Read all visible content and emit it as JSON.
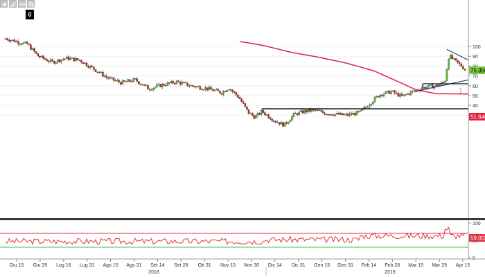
{
  "toolbar": {
    "buttons": [
      {
        "name": "add-icon"
      },
      {
        "name": "draw-icon"
      },
      {
        "name": "dots-icon"
      },
      {
        "name": "magnify-icon"
      }
    ],
    "badge": "0"
  },
  "price_chart": {
    "y_ticks": [
      "100",
      "90",
      "80",
      "70",
      "60",
      "50",
      "40",
      "30"
    ],
    "last_price_label": "75.3500",
    "ma_label": "51.6467",
    "support_level": 36.5,
    "ma_level": 51.65,
    "last_price": 75.35
  },
  "indicator": {
    "y_ticks": [
      "100",
      "50",
      "0"
    ],
    "value_label": "59.0038",
    "upper_level": 70,
    "lower_level": 30
  },
  "x_axis": {
    "labels": [
      "Giu 15",
      "Giu 29",
      "Lug 16",
      "Lug 31",
      "Ago 15",
      "Ago 31",
      "Set 14",
      "Set 28",
      "Ott 31",
      "Nov 15",
      "Nov 30",
      "Dic 14",
      "Dic 31",
      "Gen 15",
      "Gen 31",
      "Feb 14",
      "Feb 28",
      "Mar 15",
      "Mar 29",
      "Apr 15"
    ],
    "years": [
      "2018",
      "2019"
    ]
  },
  "colors": {
    "up": "#5dbb2f",
    "down": "#d42020",
    "ma": "#e02040",
    "indicator_line": "#e03040",
    "upper_line": "#e03040",
    "lower_line": "#40c040",
    "price_badge": "#7ac943"
  }
}
